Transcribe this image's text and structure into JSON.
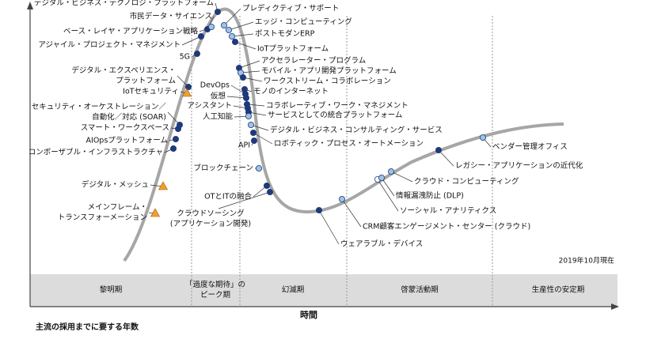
{
  "axis_label": "時間",
  "as_of": "2019年10月現在",
  "footer": "主流の採用までに要する年数",
  "phases": [
    [
      "黎明期"
    ],
    [
      "「過度な期待」の",
      "ピーク期"
    ],
    [
      "幻滅期"
    ],
    [
      "啓蒙活動期"
    ],
    [
      "生産性の安定期"
    ]
  ],
  "nodes": [
    {
      "label": [
        "デジタル・ビジネス・テクノロジ・プラットフォーム"
      ]
    },
    {
      "label": [
        "市民データ・サイエンス"
      ]
    },
    {
      "label": [
        "ベース・レイヤ・アプリケーション戦略"
      ]
    },
    {
      "label": [
        "アジャイル・プロジェクト・マネジメント"
      ]
    },
    {
      "label": [
        "5G"
      ]
    },
    {
      "label": [
        "デジタル・エクスペリエンス・",
        "プラットフォーム"
      ]
    },
    {
      "label": [
        "IoTセキュリティ"
      ]
    },
    {
      "label": [
        "セキュリティ・オーケストレーション／",
        "自動化／対応 (SOAR)"
      ]
    },
    {
      "label": [
        "スマート・ワークスペース"
      ]
    },
    {
      "label": [
        "AIOpsプラットフォーム"
      ]
    },
    {
      "label": [
        "コンポーザブル・インフラストラクチャ"
      ]
    },
    {
      "label": [
        "デジタル・メッシュ"
      ]
    },
    {
      "label": [
        "メインフレーム・",
        "トランスフォーメーション"
      ]
    },
    {
      "label": [
        "プレディクティブ・サポート"
      ]
    },
    {
      "label": [
        "エッジ・コンピューティング"
      ]
    },
    {
      "label": [
        "ポストモダンERP"
      ]
    },
    {
      "label": [
        "IoTプラットフォーム"
      ]
    },
    {
      "label": [
        "アクセラレーター・プログラム"
      ]
    },
    {
      "label": [
        "モバイル・アプリ開発プラットフォーム"
      ]
    },
    {
      "label": [
        "ワークストリーム・コラボレーション"
      ]
    },
    {
      "label": [
        "モノのインターネット"
      ]
    },
    {
      "label": [
        "DevOps"
      ]
    },
    {
      "label": [
        "仮想"
      ]
    },
    {
      "label": [
        "コラボレーティブ・ワーク・マネジメント"
      ]
    },
    {
      "label": [
        "アシスタント"
      ]
    },
    {
      "label": [
        "サービスとしての統合プラットフォーム"
      ]
    },
    {
      "label": [
        "人工知能"
      ]
    },
    {
      "label": [
        "デジタル・ビジネス・コンサルティング・サービス"
      ]
    },
    {
      "label": [
        "ロボティック・プロセス・オートメーション"
      ]
    },
    {
      "label": [
        "API"
      ]
    },
    {
      "label": [
        "ブロックチェーン"
      ]
    },
    {
      "label": [
        "OTとITの融合"
      ]
    },
    {
      "label": [
        "クラウドソーシング",
        "(アプリケーション開発)"
      ]
    },
    {
      "label": [
        "ウェアラブル・デバイス"
      ]
    },
    {
      "label": [
        "CRM顧客エンゲージメント・センター (クラウド)"
      ]
    },
    {
      "label": [
        "ソーシャル・アナリティクス"
      ]
    },
    {
      "label": [
        "情報漏洩防止 (DLP)"
      ]
    },
    {
      "label": [
        "クラウド・コンピューティング"
      ]
    },
    {
      "label": [
        "レガシー・アプリケーションの近代化"
      ]
    },
    {
      "label": [
        "ベンダー管理オフィス"
      ]
    }
  ]
}
